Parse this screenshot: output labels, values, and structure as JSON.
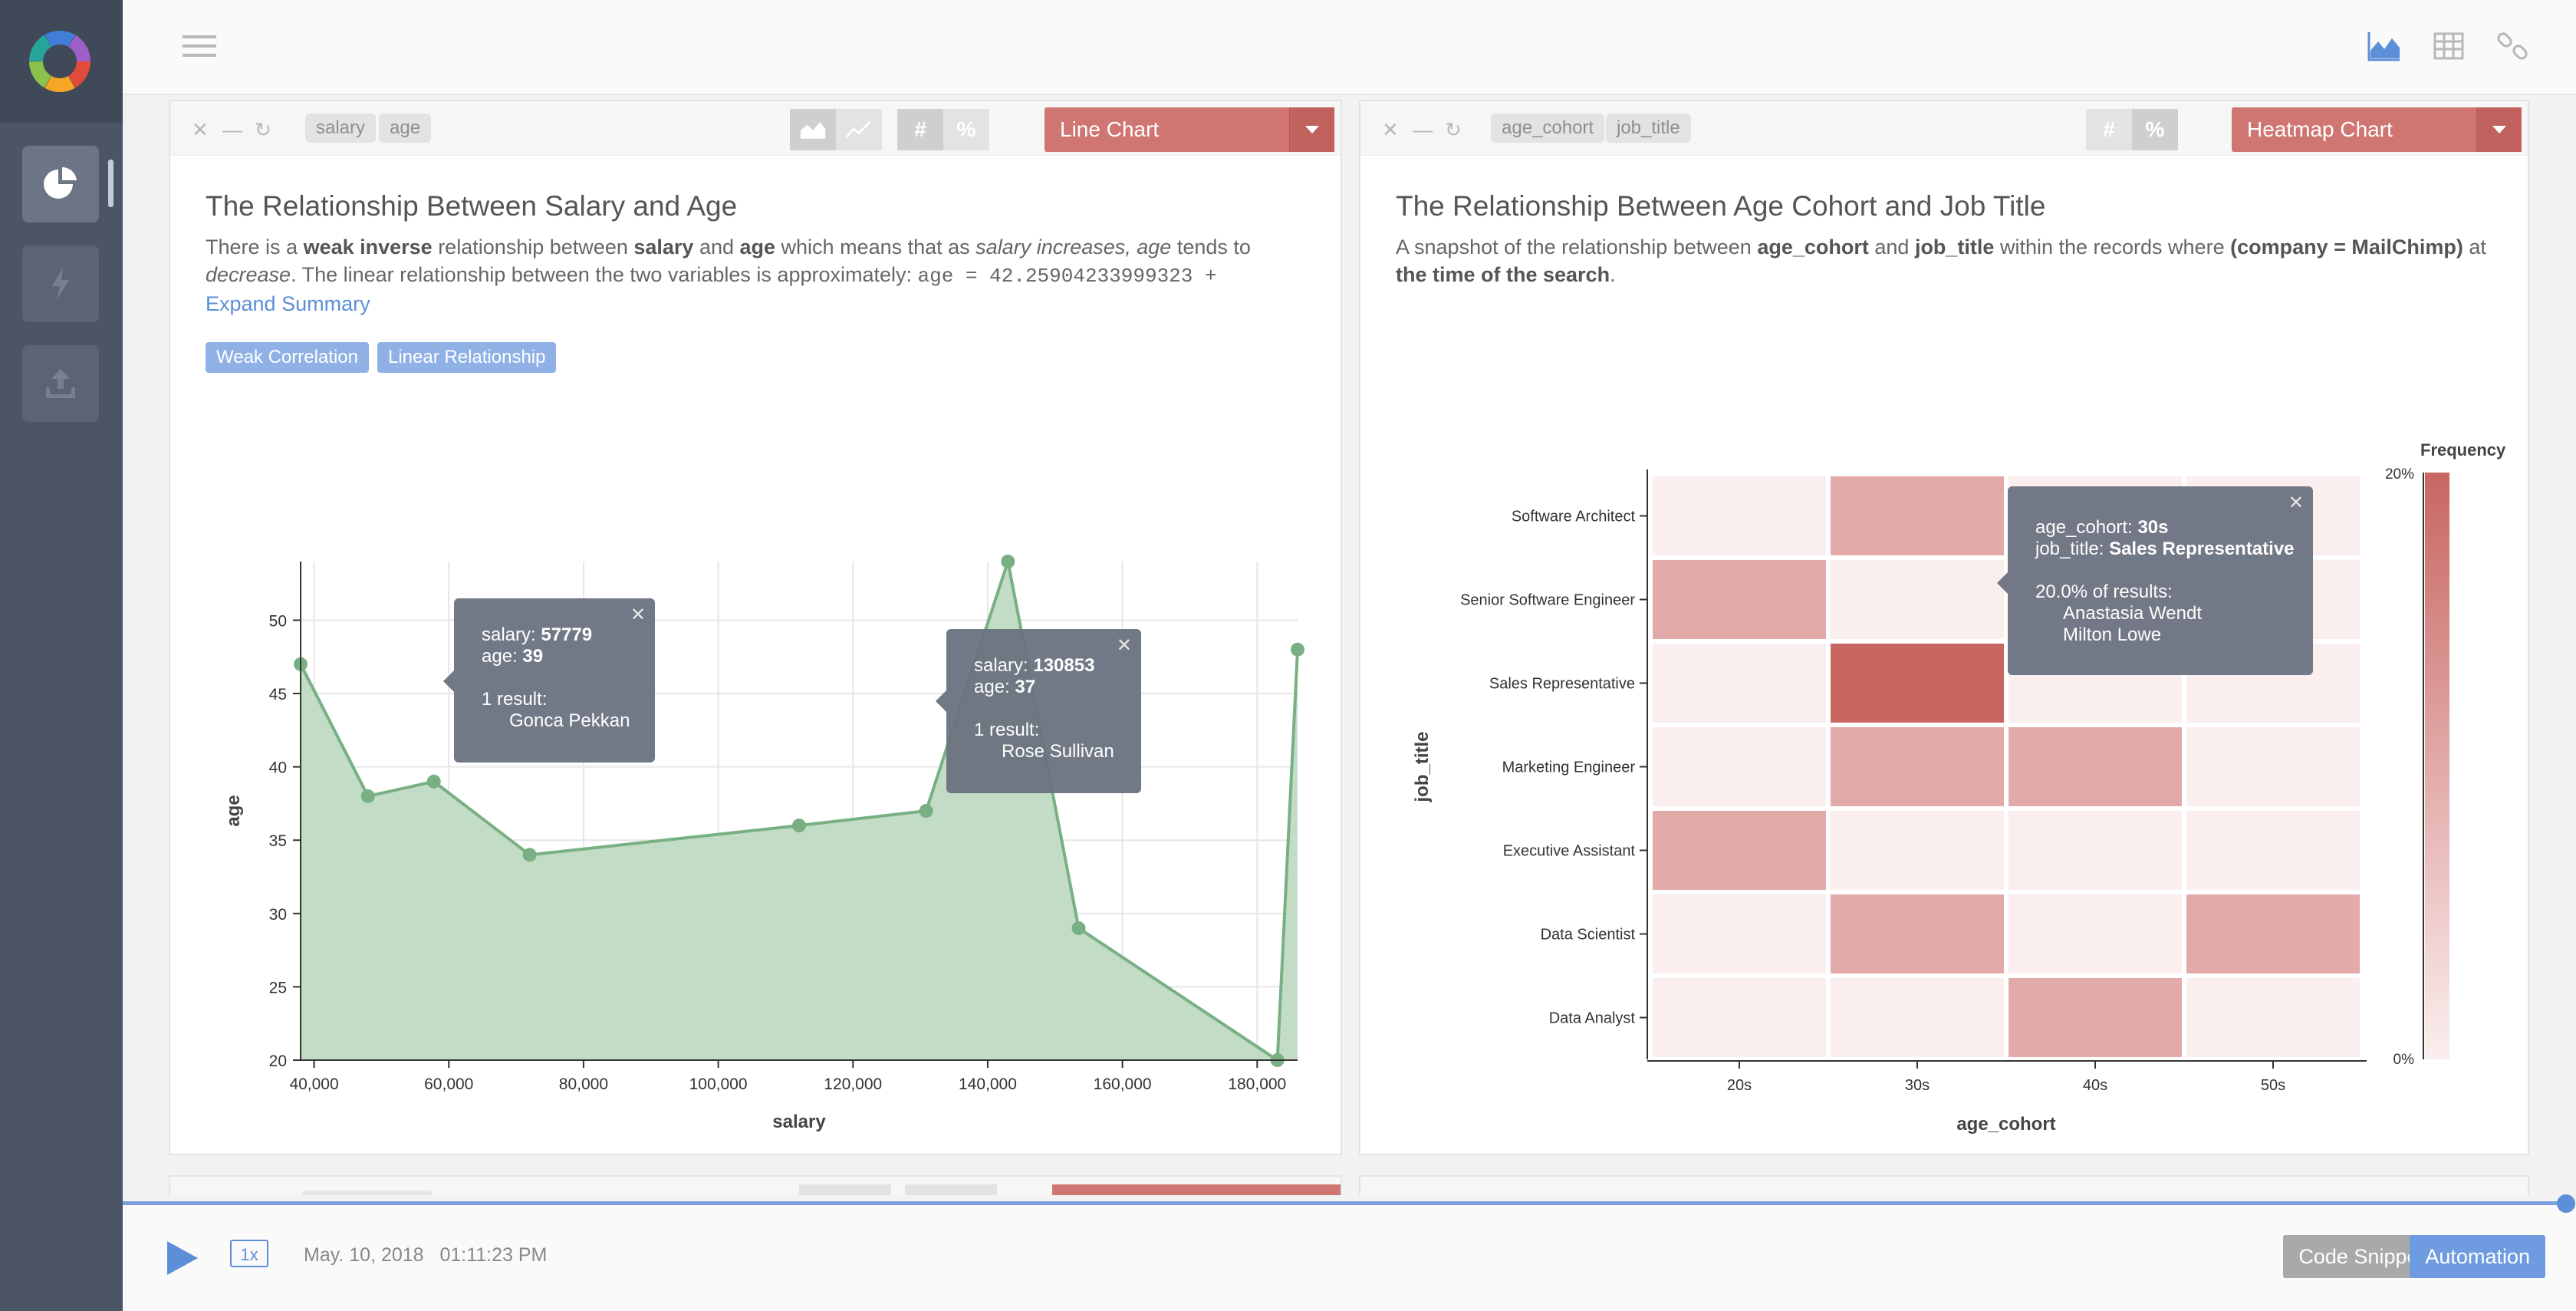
{
  "topbar": {
    "icons": [
      "hamburger-menu-icon",
      "area-chart-icon",
      "table-icon",
      "link-icon"
    ]
  },
  "sidebar": {
    "items": [
      "pie-chart-icon",
      "lightning-icon",
      "upload-icon"
    ]
  },
  "left_panel": {
    "chips": [
      "salary",
      "age"
    ],
    "chart_type": "Line Chart",
    "title": "The Relationship Between Salary and Age",
    "summary": {
      "p1": "There is a ",
      "b1": "weak inverse",
      "p2": " relationship between ",
      "b2": "salary",
      "p3": " and ",
      "b3": "age",
      "p4": " which means that as ",
      "i1": "salary increases, age",
      "p5": " tends to ",
      "i2": "decrease",
      "p6": ". The linear relationship between the two variables is approximately: ",
      "formula": "age = 42.25904233999323 +",
      "expand": "Expand Summary"
    },
    "badges": [
      "Weak Correlation",
      "Linear Relationship"
    ],
    "tooltip1": {
      "salary_label": "salary: ",
      "salary_value": "57779",
      "age_label": "age: ",
      "age_value": "39",
      "result": "1 result:",
      "name": "Gonca Pekkan"
    },
    "tooltip2": {
      "salary_label": "salary: ",
      "salary_value": "130853",
      "age_label": "age: ",
      "age_value": "37",
      "result": "1 result:",
      "name": "Rose Sullivan"
    }
  },
  "right_panel": {
    "chips": [
      "age_cohort",
      "job_title"
    ],
    "chart_type": "Heatmap Chart",
    "title": "The Relationship Between Age Cohort and Job Title",
    "summary": {
      "p1": "A snapshot of the relationship between ",
      "b1": "age_cohort",
      "p2": " and ",
      "b2": "job_title",
      "p3": " within the records where ",
      "b3": "(company = MailChimp)",
      "p4": " at ",
      "b4": "the time of the search",
      "p5": "."
    },
    "tooltip": {
      "cohort_label": "age_cohort: ",
      "cohort_value": "30s",
      "job_label": "job_title: ",
      "job_value": "Sales Representative",
      "pct": "20.0% of results:",
      "names": [
        "Anastasia Wendt",
        "Milton Lowe"
      ]
    }
  },
  "player": {
    "speed": "1x",
    "date": "May. 10, 2018",
    "time": "01:11:23 PM",
    "code_snippet": "Code Snippet",
    "automation": "Automation"
  },
  "colors": {
    "accent": "#5d8fd8",
    "chart_red": "#cf7672",
    "line_green": "#79b083",
    "sidebar": "#4b5566"
  },
  "chart_data": [
    {
      "type": "area",
      "title": "",
      "xlabel": "salary",
      "ylabel": "age",
      "xlim": [
        38000,
        186000
      ],
      "ylim": [
        20,
        54
      ],
      "xticks": [
        40000,
        60000,
        80000,
        100000,
        120000,
        140000,
        160000,
        180000
      ],
      "xtick_labels": [
        "40,000",
        "60,000",
        "80,000",
        "100,000",
        "120,000",
        "140,000",
        "160,000",
        "180,000"
      ],
      "yticks": [
        20,
        25,
        30,
        35,
        40,
        45,
        50
      ],
      "x": [
        38000,
        48000,
        57779,
        72000,
        112000,
        130853,
        143000,
        153500,
        183000,
        186000
      ],
      "y": [
        47,
        38,
        39,
        34,
        36,
        37,
        54,
        29,
        20,
        48
      ],
      "grid": true
    },
    {
      "type": "heatmap",
      "xlabel": "age_cohort",
      "ylabel": "job_title",
      "x_categories": [
        "20s",
        "30s",
        "40s",
        "50s"
      ],
      "y_categories": [
        "Software Architect",
        "Senior Software Engineer",
        "Sales Representative",
        "Marketing Engineer",
        "Executive Assistant",
        "Data Scientist",
        "Data Analyst"
      ],
      "values": [
        [
          0,
          10,
          0,
          0
        ],
        [
          10,
          0,
          0,
          0
        ],
        [
          0,
          20,
          0,
          0
        ],
        [
          0,
          10,
          10,
          0
        ],
        [
          10,
          0,
          0,
          0
        ],
        [
          0,
          10,
          0,
          10
        ],
        [
          0,
          0,
          10,
          0
        ]
      ],
      "legend_title": "Frequency",
      "legend_max": "20%",
      "legend_min": "0%"
    }
  ]
}
